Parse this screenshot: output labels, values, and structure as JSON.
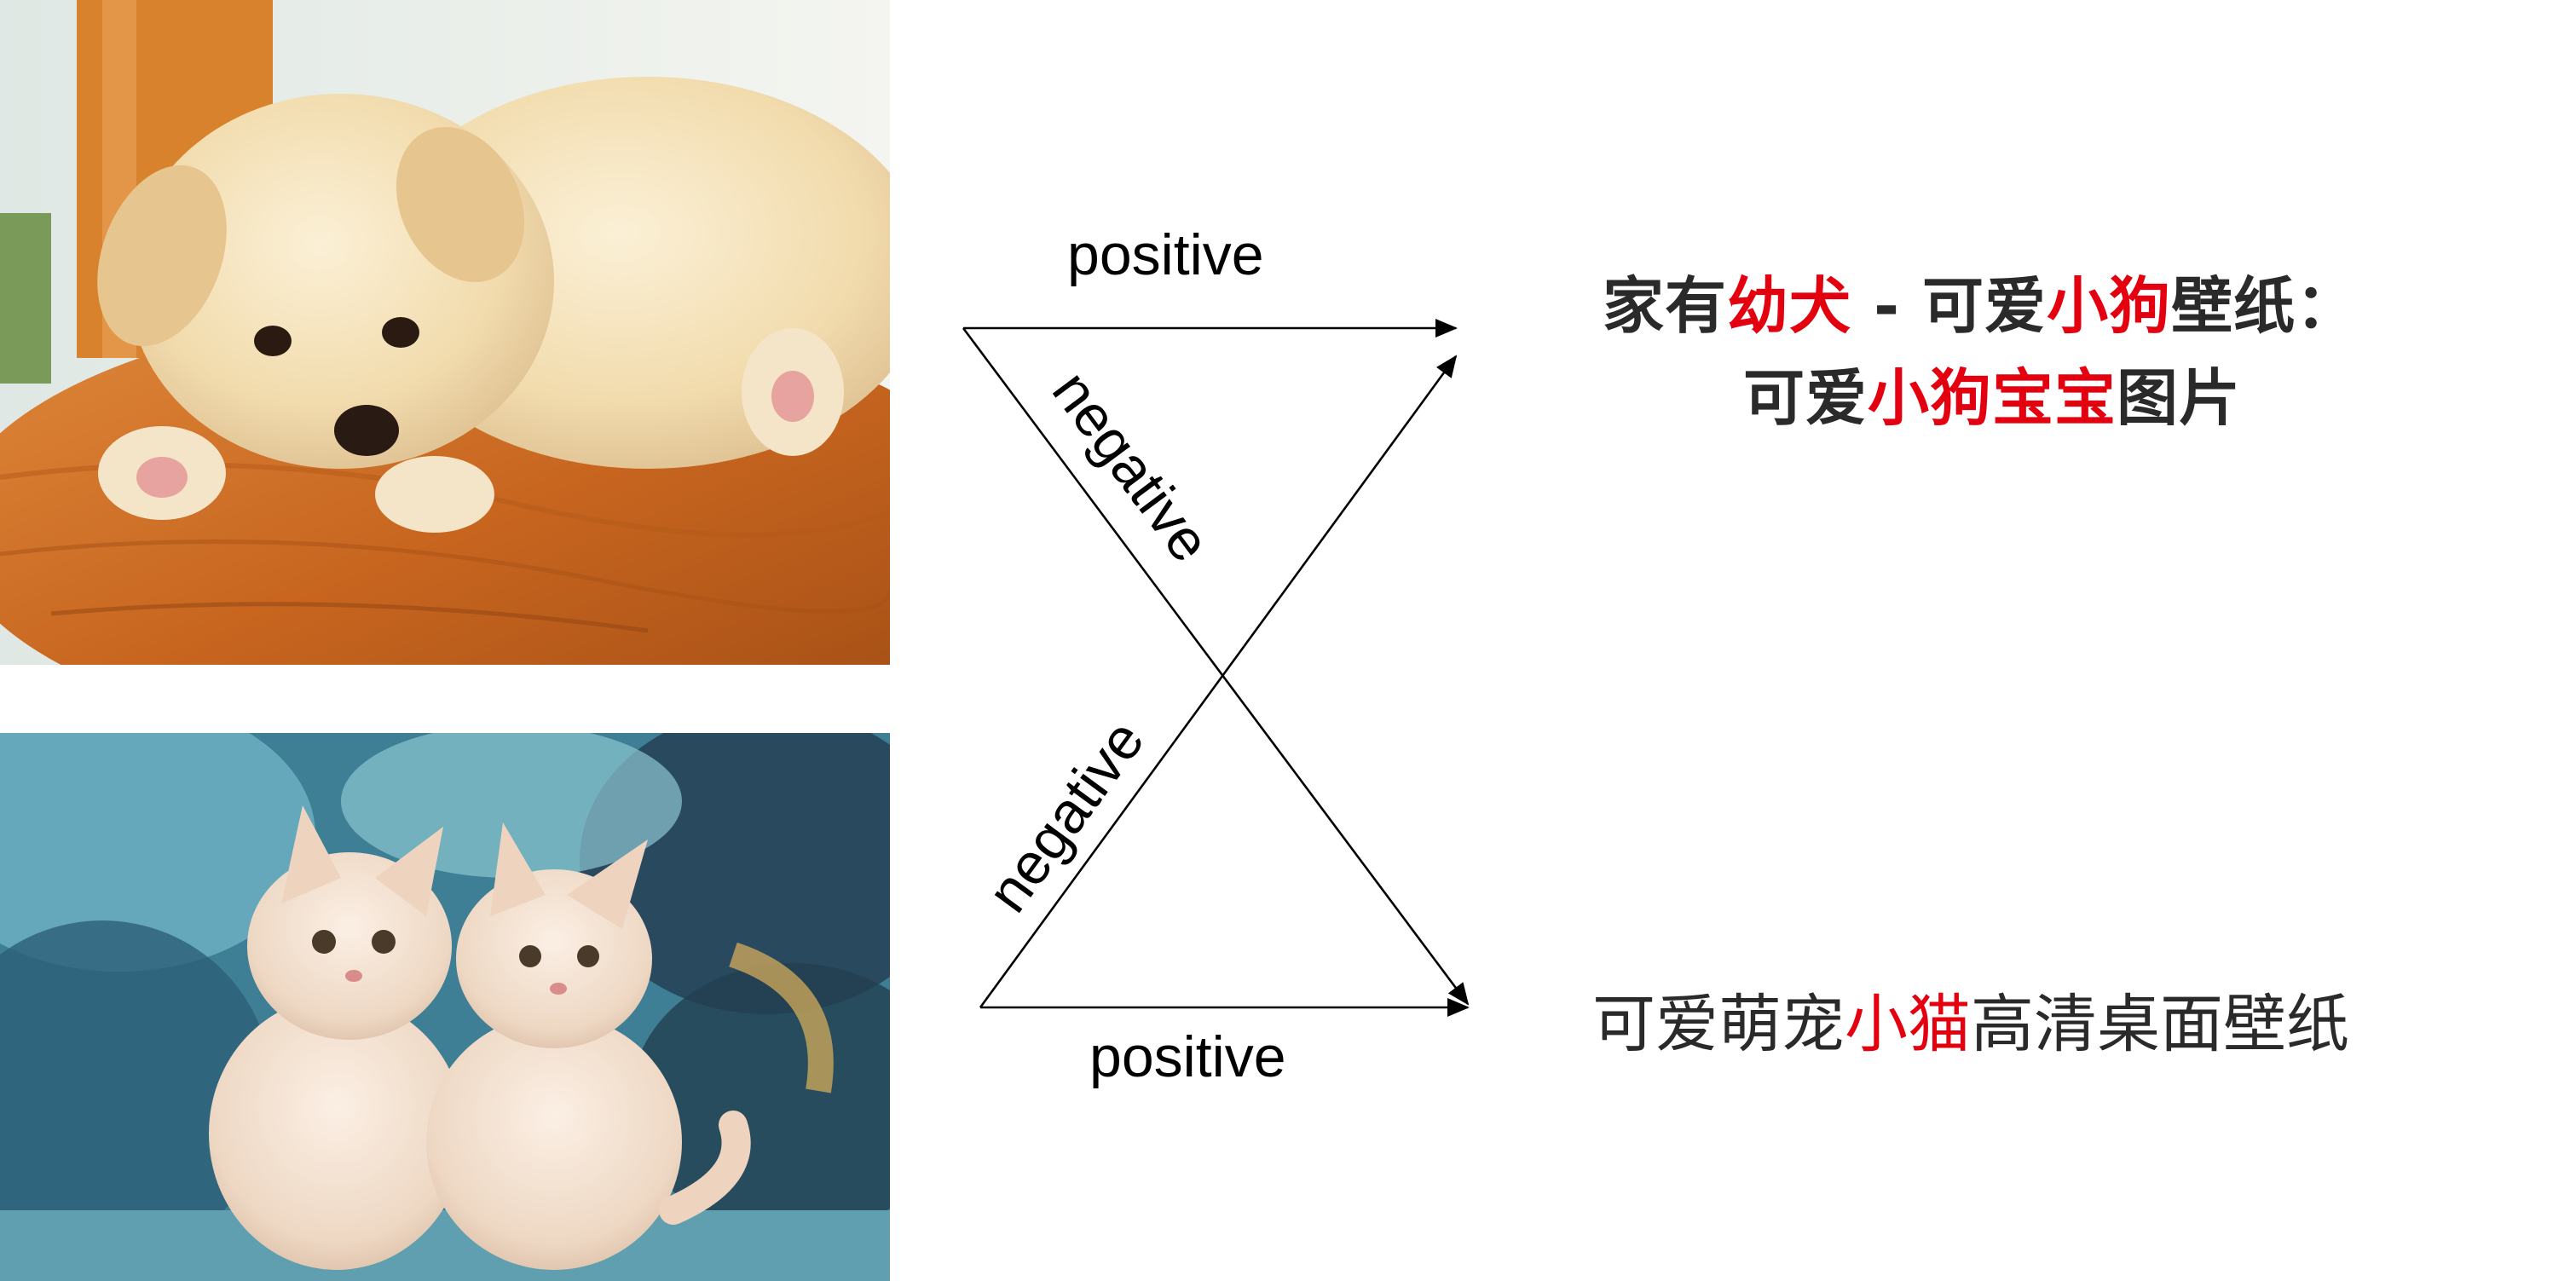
{
  "images": {
    "dog": {
      "subject": "puppy",
      "alt": "cream-colored puppy lying on a wooden chair"
    },
    "cat": {
      "subject": "kittens",
      "alt": "two cream-colored kittens sitting on a blue patterned cushion"
    }
  },
  "edges": {
    "top_positive": "positive",
    "down_negative": "negative",
    "up_negative": "negative",
    "bottom_positive": "positive"
  },
  "captions": {
    "dog": {
      "line1": [
        {
          "text": "家有",
          "highlight": false
        },
        {
          "text": "幼犬",
          "highlight": true
        },
        {
          "text": " - 可爱",
          "highlight": false
        },
        {
          "text": "小狗",
          "highlight": true
        },
        {
          "text": "壁纸：",
          "highlight": false
        }
      ],
      "line2": [
        {
          "text": "可爱",
          "highlight": false
        },
        {
          "text": "小狗宝宝",
          "highlight": true
        },
        {
          "text": "图片",
          "highlight": false
        }
      ]
    },
    "cat": {
      "line1": [
        {
          "text": "可爱萌宠",
          "highlight": false
        },
        {
          "text": "小猫",
          "highlight": true
        },
        {
          "text": "高清桌面壁纸",
          "highlight": false
        }
      ]
    }
  },
  "colors": {
    "highlight": "#e3000f",
    "text": "#2a2a2a",
    "arrow": "#000000"
  }
}
